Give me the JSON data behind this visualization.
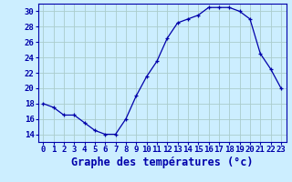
{
  "hours": [
    0,
    1,
    2,
    3,
    4,
    5,
    6,
    7,
    8,
    9,
    10,
    11,
    12,
    13,
    14,
    15,
    16,
    17,
    18,
    19,
    20,
    21,
    22,
    23
  ],
  "temps": [
    18,
    17.5,
    16.5,
    16.5,
    15.5,
    14.5,
    14,
    14,
    16,
    19,
    21.5,
    23.5,
    26.5,
    28.5,
    29,
    29.5,
    30.5,
    30.5,
    30.5,
    30,
    29,
    24.5,
    22.5,
    20
  ],
  "line_color": "#0000aa",
  "marker": "+",
  "marker_color": "#0000aa",
  "bg_color": "#cceeff",
  "grid_color": "#aacccc",
  "axis_label_color": "#0000aa",
  "title": "Graphe des températures (°c)",
  "ylim": [
    13,
    31
  ],
  "yticks": [
    14,
    16,
    18,
    20,
    22,
    24,
    26,
    28,
    30
  ],
  "xlim": [
    -0.5,
    23.5
  ],
  "tick_fontsize": 6.5,
  "xlabel_fontsize": 8.5
}
